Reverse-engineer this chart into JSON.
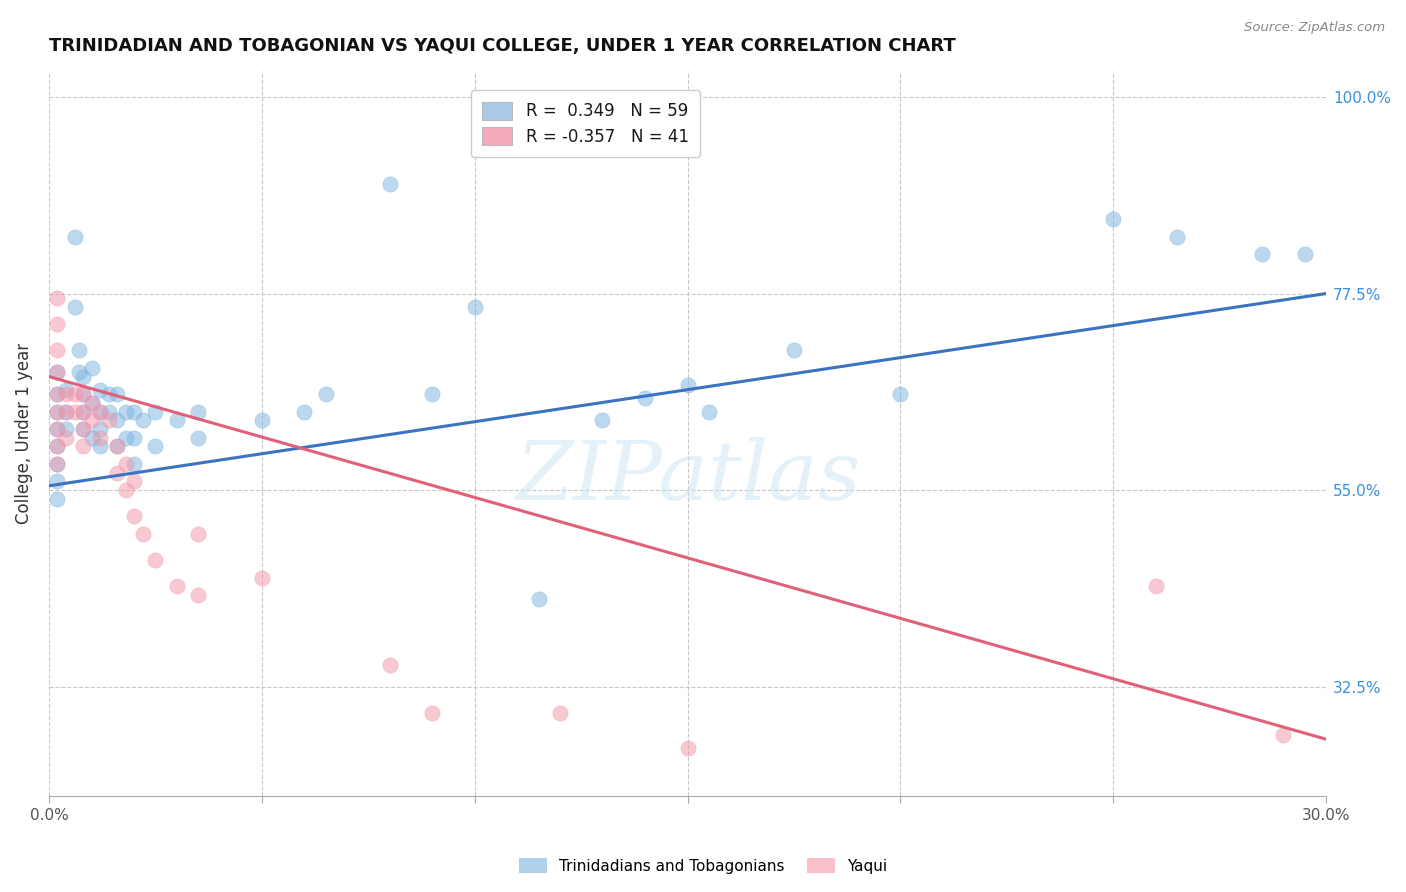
{
  "title": "TRINIDADIAN AND TOBAGONIAN VS YAQUI COLLEGE, UNDER 1 YEAR CORRELATION CHART",
  "source": "Source: ZipAtlas.com",
  "ylabel": "College, Under 1 year",
  "xmin": 0.0,
  "xmax": 0.3,
  "ymin": 0.2,
  "ymax": 1.03,
  "yticks": [
    0.325,
    0.55,
    0.775,
    1.0
  ],
  "ytick_labels": [
    "32.5%",
    "55.0%",
    "77.5%",
    "100.0%"
  ],
  "xticks": [
    0.0,
    0.05,
    0.1,
    0.15,
    0.2,
    0.25,
    0.3
  ],
  "xtick_labels": [
    "0.0%",
    "",
    "",
    "",
    "",
    "",
    "30.0%"
  ],
  "watermark": "ZIPatlas",
  "legend_blue_label": "R =  0.349   N = 59",
  "legend_pink_label": "R = -0.357   N = 41",
  "legend_blue_color": "#adc9e8",
  "legend_pink_color": "#f5aabb",
  "blue_color": "#7ab3e0",
  "pink_color": "#f595a8",
  "blue_line_color": "#3b73c0",
  "pink_line_color": "#e0607a",
  "blue_line_x": [
    0.0,
    0.3
  ],
  "blue_line_y": [
    0.555,
    0.775
  ],
  "pink_line_x": [
    0.0,
    0.3
  ],
  "pink_line_y": [
    0.68,
    0.265
  ],
  "blue_scatter": [
    [
      0.002,
      0.685
    ],
    [
      0.002,
      0.66
    ],
    [
      0.002,
      0.64
    ],
    [
      0.002,
      0.62
    ],
    [
      0.002,
      0.6
    ],
    [
      0.002,
      0.58
    ],
    [
      0.002,
      0.56
    ],
    [
      0.002,
      0.54
    ],
    [
      0.004,
      0.665
    ],
    [
      0.004,
      0.64
    ],
    [
      0.004,
      0.62
    ],
    [
      0.006,
      0.84
    ],
    [
      0.006,
      0.76
    ],
    [
      0.007,
      0.71
    ],
    [
      0.007,
      0.685
    ],
    [
      0.008,
      0.68
    ],
    [
      0.008,
      0.66
    ],
    [
      0.008,
      0.64
    ],
    [
      0.008,
      0.62
    ],
    [
      0.01,
      0.69
    ],
    [
      0.01,
      0.65
    ],
    [
      0.01,
      0.61
    ],
    [
      0.012,
      0.665
    ],
    [
      0.012,
      0.64
    ],
    [
      0.012,
      0.62
    ],
    [
      0.012,
      0.6
    ],
    [
      0.014,
      0.66
    ],
    [
      0.014,
      0.64
    ],
    [
      0.016,
      0.66
    ],
    [
      0.016,
      0.63
    ],
    [
      0.016,
      0.6
    ],
    [
      0.018,
      0.64
    ],
    [
      0.018,
      0.61
    ],
    [
      0.02,
      0.64
    ],
    [
      0.02,
      0.61
    ],
    [
      0.02,
      0.58
    ],
    [
      0.022,
      0.63
    ],
    [
      0.025,
      0.64
    ],
    [
      0.025,
      0.6
    ],
    [
      0.03,
      0.63
    ],
    [
      0.035,
      0.64
    ],
    [
      0.035,
      0.61
    ],
    [
      0.05,
      0.63
    ],
    [
      0.06,
      0.64
    ],
    [
      0.065,
      0.66
    ],
    [
      0.08,
      0.9
    ],
    [
      0.09,
      0.66
    ],
    [
      0.1,
      0.76
    ],
    [
      0.115,
      0.425
    ],
    [
      0.13,
      0.63
    ],
    [
      0.14,
      0.655
    ],
    [
      0.15,
      0.67
    ],
    [
      0.155,
      0.64
    ],
    [
      0.175,
      0.71
    ],
    [
      0.2,
      0.66
    ],
    [
      0.25,
      0.86
    ],
    [
      0.265,
      0.84
    ],
    [
      0.285,
      0.82
    ],
    [
      0.295,
      0.82
    ]
  ],
  "pink_scatter": [
    [
      0.002,
      0.77
    ],
    [
      0.002,
      0.74
    ],
    [
      0.002,
      0.71
    ],
    [
      0.002,
      0.685
    ],
    [
      0.002,
      0.66
    ],
    [
      0.002,
      0.64
    ],
    [
      0.002,
      0.62
    ],
    [
      0.002,
      0.6
    ],
    [
      0.002,
      0.58
    ],
    [
      0.004,
      0.66
    ],
    [
      0.004,
      0.64
    ],
    [
      0.004,
      0.61
    ],
    [
      0.006,
      0.66
    ],
    [
      0.006,
      0.64
    ],
    [
      0.008,
      0.66
    ],
    [
      0.008,
      0.64
    ],
    [
      0.008,
      0.62
    ],
    [
      0.008,
      0.6
    ],
    [
      0.01,
      0.65
    ],
    [
      0.01,
      0.63
    ],
    [
      0.012,
      0.64
    ],
    [
      0.012,
      0.61
    ],
    [
      0.014,
      0.63
    ],
    [
      0.016,
      0.6
    ],
    [
      0.016,
      0.57
    ],
    [
      0.018,
      0.58
    ],
    [
      0.018,
      0.55
    ],
    [
      0.02,
      0.56
    ],
    [
      0.02,
      0.52
    ],
    [
      0.022,
      0.5
    ],
    [
      0.025,
      0.47
    ],
    [
      0.03,
      0.44
    ],
    [
      0.035,
      0.5
    ],
    [
      0.035,
      0.43
    ],
    [
      0.05,
      0.45
    ],
    [
      0.08,
      0.35
    ],
    [
      0.09,
      0.295
    ],
    [
      0.12,
      0.295
    ],
    [
      0.15,
      0.255
    ],
    [
      0.26,
      0.44
    ],
    [
      0.29,
      0.27
    ]
  ]
}
